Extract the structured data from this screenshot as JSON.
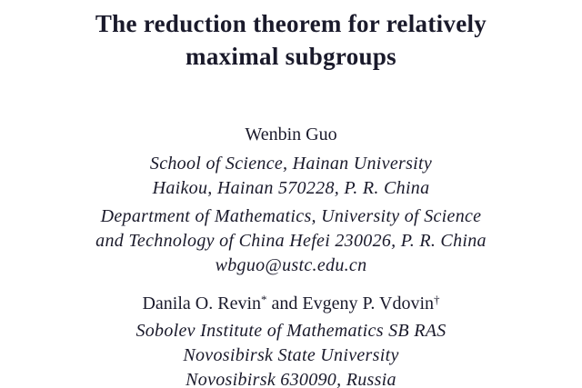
{
  "paper": {
    "title": {
      "line1": "The reduction theorem for relatively",
      "line2": "maximal subgroups"
    },
    "author1": {
      "name": "Wenbin Guo",
      "affiliation1": {
        "line1": "School of Science, Hainan University",
        "line2": "Haikou, Hainan 570228, P. R. China"
      },
      "affiliation2": {
        "line1": "Department of Mathematics, University of Science",
        "line2": "and Technology of China Hefei 230026, P. R. China",
        "email": "wbguo@ustc.edu.cn"
      }
    },
    "authors2": {
      "name1": "Danila O. Revin",
      "footnote1": "*",
      "connector": " and ",
      "name2": "Evgeny P. Vdovin",
      "footnote2": "†",
      "affiliation": {
        "line1": "Sobolev Institute of Mathematics SB RAS",
        "line2": "Novosibirsk State University",
        "line3": "Novosibirsk 630090, Russia"
      }
    },
    "colors": {
      "text": "#1a1a2b",
      "background": "#ffffff"
    }
  }
}
